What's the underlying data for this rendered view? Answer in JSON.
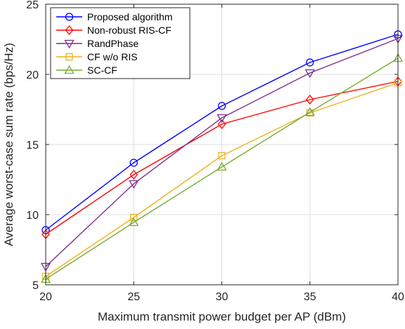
{
  "chart_data": {
    "type": "line",
    "title": "",
    "xlabel": "Maximum transmit power budget per AP (dBm)",
    "ylabel": "Average worst-case sum rate (bps/Hz)",
    "xlim": [
      20,
      40
    ],
    "ylim": [
      5,
      25
    ],
    "xticks": [
      20,
      25,
      30,
      35,
      40
    ],
    "yticks": [
      5,
      10,
      15,
      20,
      25
    ],
    "grid": true,
    "legend_position": "top-left",
    "x": [
      20,
      25,
      30,
      35,
      40
    ],
    "series": [
      {
        "name": "Proposed algorithm",
        "color": "#0000ff",
        "marker": "circle",
        "values": [
          8.9,
          13.7,
          17.75,
          20.85,
          22.85
        ]
      },
      {
        "name": "Non-robust RIS-CF",
        "color": "#ff0000",
        "marker": "diamond",
        "values": [
          8.6,
          12.85,
          16.45,
          18.2,
          19.5
        ]
      },
      {
        "name": "RandPhase",
        "color": "#7e2f8e",
        "marker": "triangle-down",
        "values": [
          6.3,
          12.2,
          16.9,
          20.1,
          22.55
        ]
      },
      {
        "name": "CF w/o RIS",
        "color": "#edb120",
        "marker": "square",
        "values": [
          5.6,
          9.8,
          14.2,
          17.25,
          19.4
        ]
      },
      {
        "name": "SC-CF",
        "color": "#77ac30",
        "marker": "triangle-up",
        "values": [
          5.4,
          9.45,
          13.4,
          17.3,
          21.15
        ]
      }
    ]
  }
}
